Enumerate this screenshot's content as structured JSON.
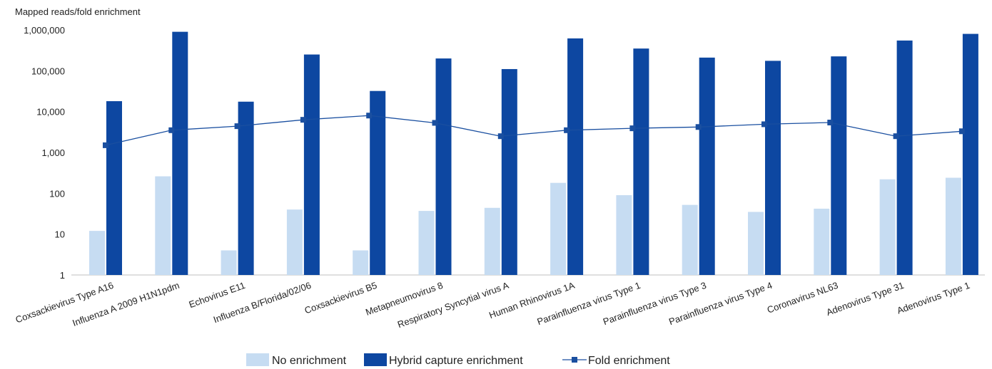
{
  "chart_data": {
    "type": "bar",
    "ylabel": "Mapped reads/fold enrichment",
    "yscale": "log",
    "ylim": [
      1,
      1000000
    ],
    "yticks": [
      "1",
      "10",
      "100",
      "1,000",
      "10,000",
      "100,000",
      "1,000,000"
    ],
    "grid": false,
    "legend_position": "bottom",
    "categories": [
      "Coxsackievirus Type A16",
      "Influenza A 2009 H1N1pdm",
      "Echovirus E11",
      "Influenza B/Florida/02/06",
      "Coxsackievirus B5",
      "Metapneumovirus 8",
      "Respiratory Syncytial virus A",
      "Human Rhinovirus 1A",
      "Parainfluenza virus Type 1",
      "Parainfluenza virus Type 3",
      "Parainfluenza virus Type 4",
      "Coronavirus NL63",
      "Adenovirus Type 31",
      "Adenovirus Type 1"
    ],
    "series": [
      {
        "name": "No enrichment",
        "kind": "bar",
        "color": "#c6dcf2",
        "values": [
          12,
          260,
          4,
          40,
          4,
          37,
          44,
          180,
          90,
          52,
          35,
          42,
          220,
          240
        ]
      },
      {
        "name": "Hybrid capture enrichment",
        "kind": "bar",
        "color": "#0d47a1",
        "values": [
          18000,
          900000,
          17500,
          250000,
          32000,
          200000,
          110000,
          620000,
          350000,
          210000,
          175000,
          225000,
          550000,
          800000
        ]
      },
      {
        "name": "Fold enrichment",
        "kind": "line",
        "color": "#1a4fa0",
        "values": [
          1500,
          3500,
          4400,
          6300,
          8000,
          5300,
          2500,
          3500,
          3900,
          4200,
          4900,
          5400,
          2500,
          3300
        ]
      }
    ]
  }
}
